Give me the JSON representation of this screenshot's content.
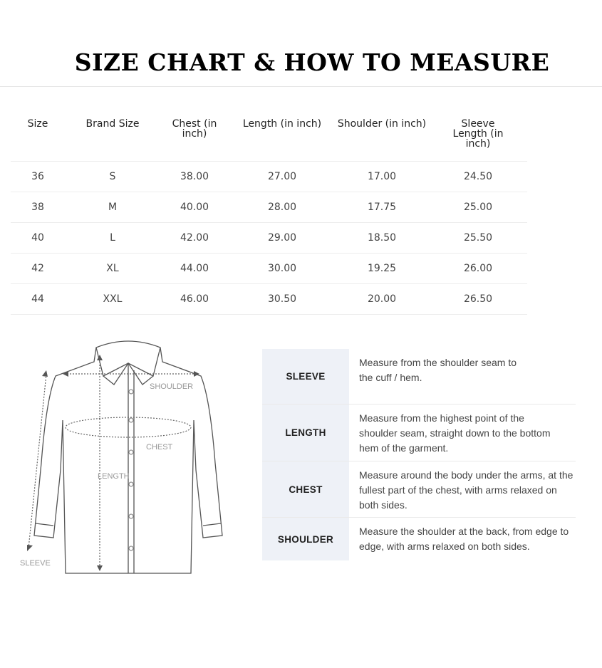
{
  "title": "SIZE CHART & HOW TO MEASURE",
  "size_table": {
    "headers": [
      "Size",
      "Brand Size",
      "Chest (in inch)",
      "Length (in inch)",
      "Shoulder (in inch)",
      "Sleeve Length (in inch)"
    ],
    "rows": [
      [
        "36",
        "S",
        "38.00",
        "27.00",
        "17.00",
        "24.50"
      ],
      [
        "38",
        "M",
        "40.00",
        "28.00",
        "17.75",
        "25.00"
      ],
      [
        "40",
        "L",
        "42.00",
        "29.00",
        "18.50",
        "25.50"
      ],
      [
        "42",
        "XL",
        "44.00",
        "30.00",
        "19.25",
        "26.00"
      ],
      [
        "44",
        "XXL",
        "46.00",
        "30.50",
        "20.00",
        "26.50"
      ]
    ]
  },
  "diagram_labels": {
    "shoulder": "SHOULDER",
    "chest": "CHEST",
    "length": "LENGTH",
    "sleeve": "SLEEVE"
  },
  "how_to_measure": [
    {
      "key": "SLEEVE",
      "text": "Measure from the shoulder seam to the cuff / hem."
    },
    {
      "key": "LENGTH",
      "text": "Measure from the highest point of the shoulder seam, straight down to the bottom hem of the garment."
    },
    {
      "key": "CHEST",
      "text": "Measure around the body under the arms, at the fullest part of the chest, with arms relaxed on both sides."
    },
    {
      "key": "SHOULDER",
      "text": "Measure the shoulder at the back, from edge to edge, with arms relaxed on both sides."
    }
  ],
  "colors": {
    "key_column_bg": "#eef1f7",
    "text": "#444444"
  }
}
